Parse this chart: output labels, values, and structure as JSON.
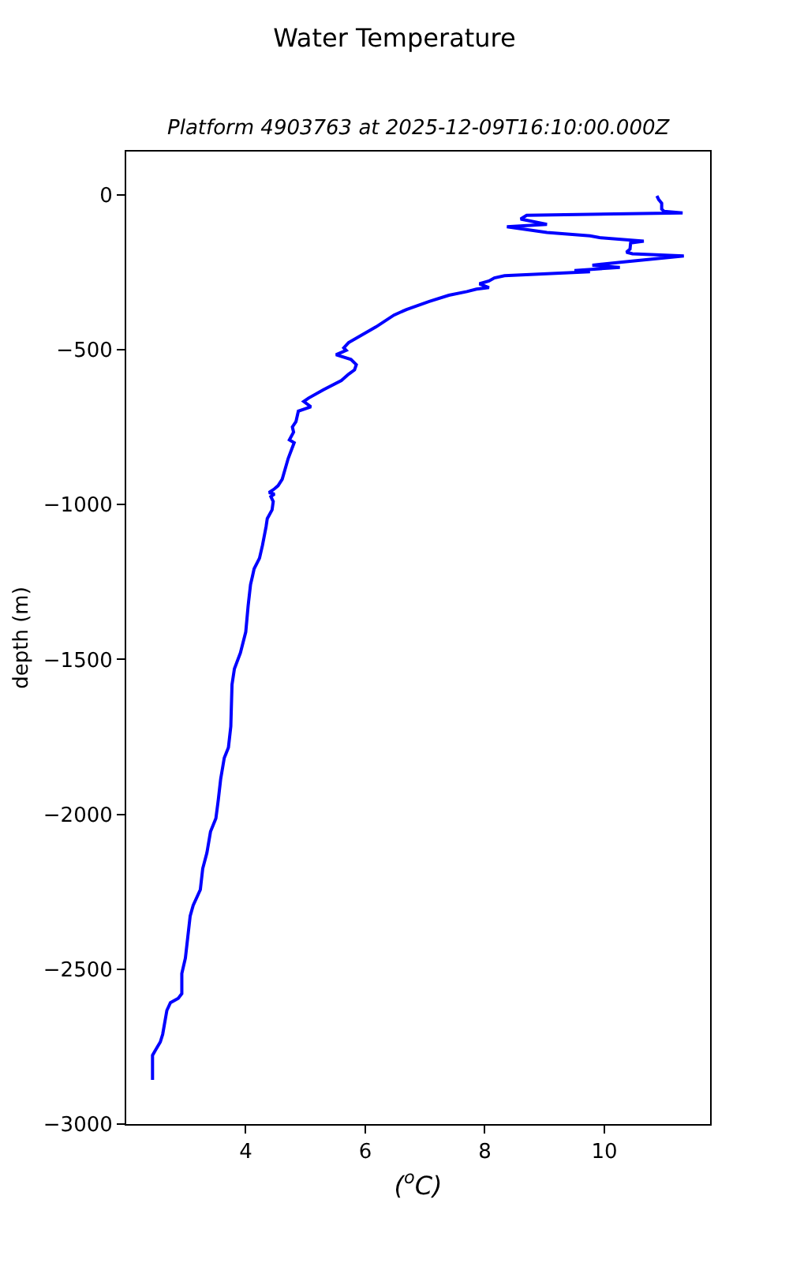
{
  "chart_data": {
    "type": "line",
    "title": "Water Temperature",
    "subtitle": "Platform 4903763 at 2025-12-09T16:10:00.000Z",
    "xlabel": "($^{o}$C)",
    "ylabel": "depth (m)",
    "series": [
      {
        "color": "#0000ff",
        "line_style": "solid",
        "x": [
          10.88,
          10.91,
          10.96,
          10.96,
          11.0,
          11.31,
          8.7,
          8.6,
          9.04,
          8.37,
          9.04,
          9.76,
          9.92,
          10.66,
          10.44,
          10.43,
          10.37,
          10.47,
          11.33,
          10.3,
          9.8,
          10.26,
          9.5,
          9.76,
          8.33,
          8.16,
          8.07,
          7.91,
          8.07,
          7.86,
          7.7,
          7.4,
          7.07,
          6.69,
          6.48,
          6.18,
          5.72,
          5.64,
          5.68,
          5.51,
          5.76,
          5.85,
          5.82,
          5.72,
          5.6,
          5.3,
          5.05,
          4.97,
          5.09,
          4.88,
          4.84,
          4.78,
          4.8,
          4.73,
          4.81,
          4.71,
          4.61,
          4.54,
          4.48,
          4.39,
          4.48,
          4.42,
          4.46,
          4.44,
          4.36,
          4.34,
          4.28,
          4.23,
          4.14,
          4.11,
          4.08,
          4.04,
          4.0,
          3.91,
          3.81,
          3.77,
          3.75,
          3.71,
          3.64,
          3.58,
          3.54,
          3.5,
          3.41,
          3.35,
          3.28,
          3.24,
          3.12,
          3.07,
          3.03,
          2.99,
          2.93,
          2.93,
          2.87,
          2.74,
          2.68,
          2.61,
          2.57,
          2.49,
          2.44,
          2.44
        ],
        "values": [
          -3,
          -15,
          -27,
          -46,
          -53,
          -58,
          -66,
          -78,
          -95,
          -103,
          -121,
          -132,
          -138,
          -149,
          -155,
          -175,
          -185,
          -190,
          -197,
          -217,
          -227,
          -234,
          -244,
          -248,
          -261,
          -268,
          -278,
          -287,
          -299,
          -304,
          -312,
          -324,
          -344,
          -370,
          -388,
          -426,
          -477,
          -494,
          -502,
          -516,
          -531,
          -548,
          -565,
          -579,
          -599,
          -629,
          -656,
          -667,
          -684,
          -698,
          -732,
          -749,
          -766,
          -791,
          -800,
          -851,
          -918,
          -939,
          -949,
          -961,
          -966,
          -974,
          -990,
          -1017,
          -1045,
          -1071,
          -1131,
          -1173,
          -1207,
          -1233,
          -1258,
          -1326,
          -1411,
          -1479,
          -1530,
          -1581,
          -1716,
          -1784,
          -1818,
          -1886,
          -1954,
          -2013,
          -2056,
          -2124,
          -2175,
          -2243,
          -2294,
          -2328,
          -2396,
          -2464,
          -2514,
          -2579,
          -2594,
          -2608,
          -2633,
          -2710,
          -2735,
          -2761,
          -2778,
          -2857
        ]
      }
    ],
    "xlim": [
      2.0,
      11.77
    ],
    "xticks": [
      4,
      6,
      8,
      10
    ],
    "ylim": [
      -3000,
      140
    ],
    "yticks": [
      0,
      -500,
      -1000,
      -1500,
      -2000,
      -2500,
      -3000
    ]
  }
}
